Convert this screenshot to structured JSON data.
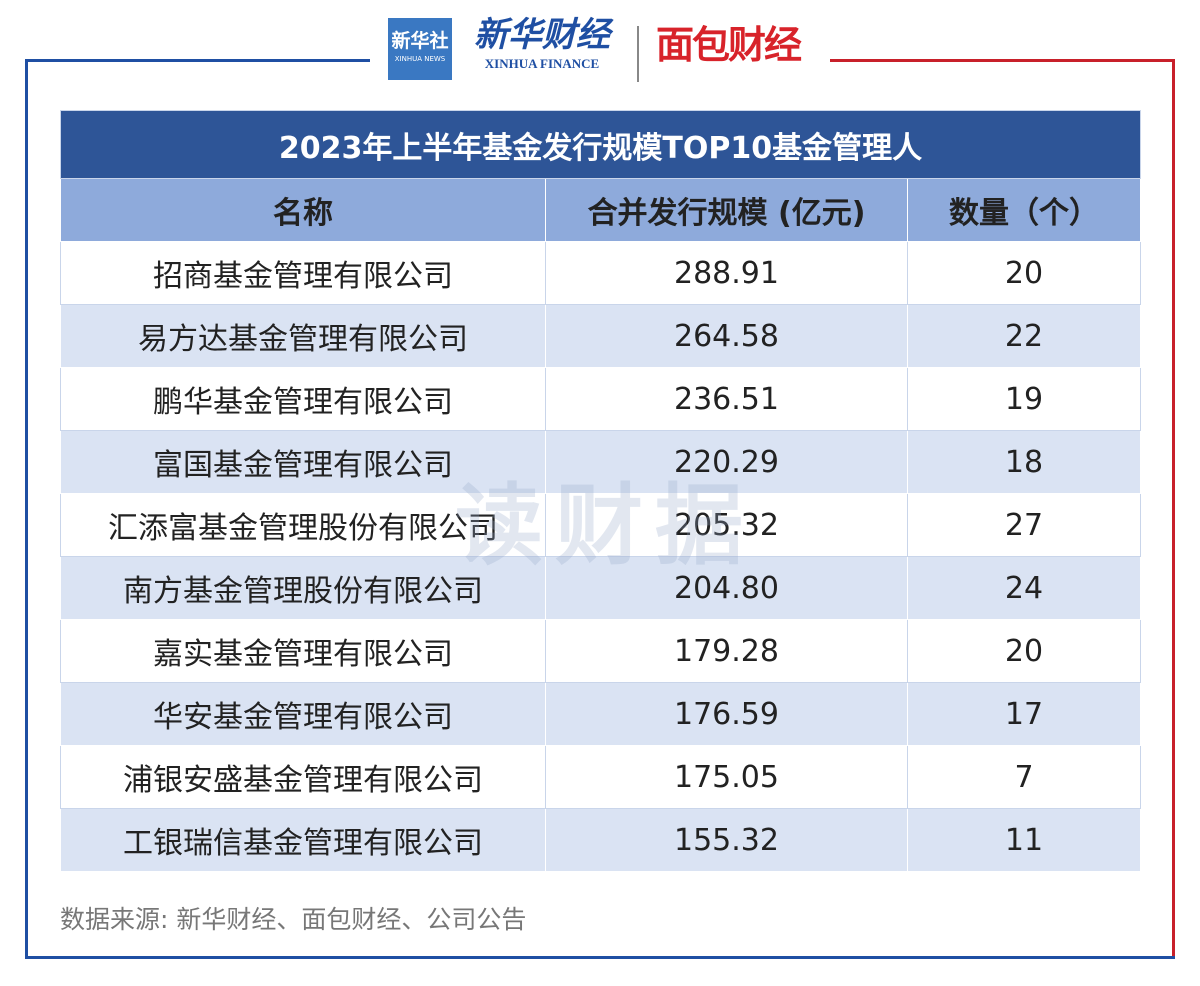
{
  "header": {
    "logo_xinhua": "新华社",
    "logo_xinhua_en": "XINHUA NEWS",
    "logo_finance": "新华财经",
    "logo_finance_en": "XINHUA FINANCE",
    "logo_mianbao": "面包财经"
  },
  "table": {
    "title": "2023年上半年基金发行规模TOP10基金管理人",
    "columns": [
      "名称",
      "合并发行规模 (亿元)",
      "数量（个）"
    ],
    "rows": [
      [
        "招商基金管理有限公司",
        "288.91",
        "20"
      ],
      [
        "易方达基金管理有限公司",
        "264.58",
        "22"
      ],
      [
        "鹏华基金管理有限公司",
        "236.51",
        "19"
      ],
      [
        "富国基金管理有限公司",
        "220.29",
        "18"
      ],
      [
        "汇添富基金管理股份有限公司",
        "205.32",
        "27"
      ],
      [
        "南方基金管理股份有限公司",
        "204.80",
        "24"
      ],
      [
        "嘉实基金管理有限公司",
        "179.28",
        "20"
      ],
      [
        "华安基金管理有限公司",
        "176.59",
        "17"
      ],
      [
        "浦银安盛基金管理有限公司",
        "175.05",
        "7"
      ],
      [
        "工银瑞信基金管理有限公司",
        "155.32",
        "11"
      ]
    ]
  },
  "watermark": "读财据",
  "source": "数据来源: 新华财经、面包财经、公司公告"
}
